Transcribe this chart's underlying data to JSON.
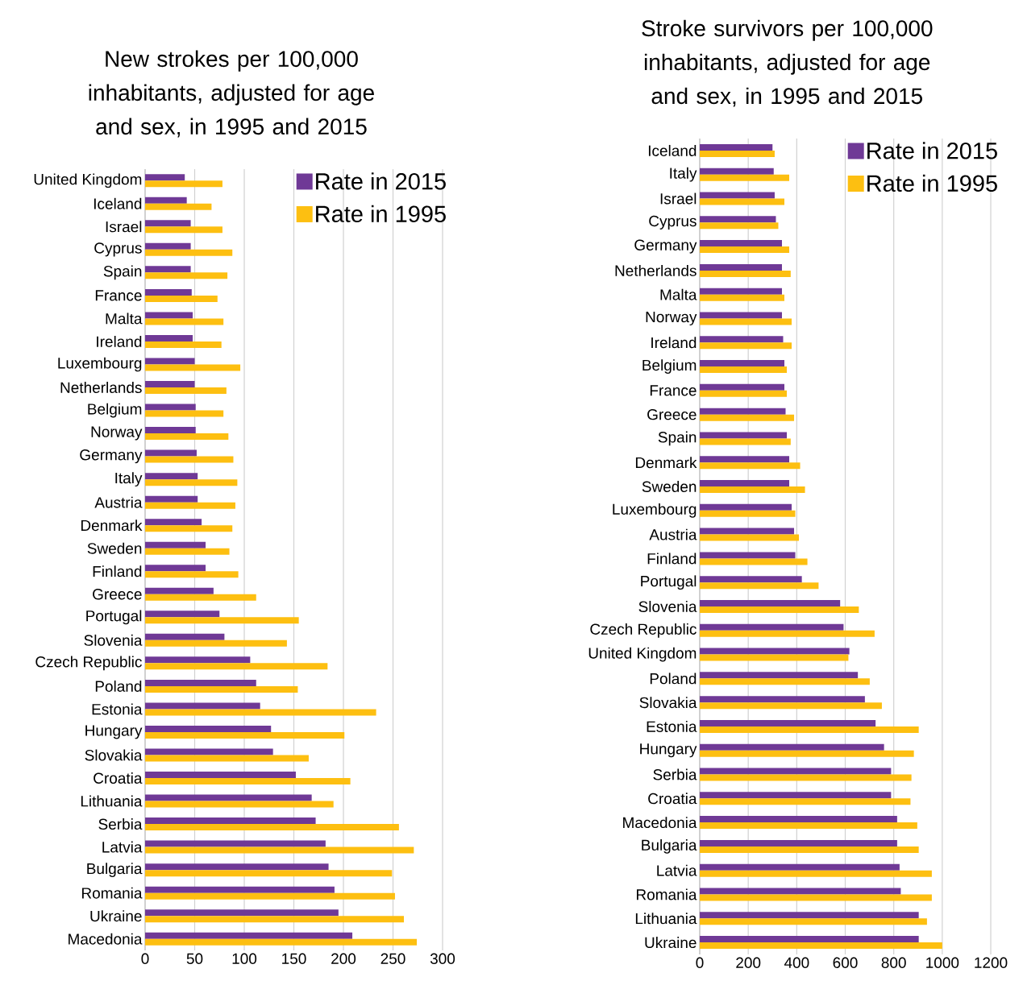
{
  "chart_data": [
    {
      "type": "bar",
      "orientation": "horizontal",
      "title": "New strokes per 100,000 inhabitants, adjusted for age and sex, in 1995 and 2015",
      "categories": [
        "United Kingdom",
        "Iceland",
        "Israel",
        "Cyprus",
        "Spain",
        "France",
        "Malta",
        "Ireland",
        "Luxembourg",
        "Netherlands",
        "Belgium",
        "Norway",
        "Germany",
        "Italy",
        "Austria",
        "Denmark",
        "Sweden",
        "Finland",
        "Greece",
        "Portugal",
        "Slovenia",
        "Czech Republic",
        "Poland",
        "Estonia",
        "Hungary",
        "Slovakia",
        "Croatia",
        "Lithuania",
        "Serbia",
        "Latvia",
        "Bulgaria",
        "Romania",
        "Ukraine",
        "Macedonia"
      ],
      "series": [
        {
          "name": "Rate in 2015",
          "color": "#6f3996",
          "values": [
            40,
            42,
            46,
            46,
            46,
            47,
            48,
            48,
            50,
            50,
            51,
            51,
            52,
            53,
            53,
            57,
            61,
            61,
            69,
            75,
            80,
            106,
            112,
            116,
            127,
            129,
            152,
            168,
            172,
            182,
            185,
            191,
            195,
            209
          ]
        },
        {
          "name": "Rate in 1995",
          "color": "#fdbf11",
          "values": [
            78,
            67,
            78,
            88,
            83,
            73,
            79,
            77,
            96,
            82,
            79,
            84,
            89,
            93,
            91,
            88,
            85,
            94,
            112,
            155,
            143,
            184,
            154,
            233,
            201,
            165,
            207,
            190,
            256,
            271,
            249,
            252,
            261,
            274
          ]
        }
      ],
      "xlim": [
        0,
        300
      ],
      "xticks": [
        0,
        50,
        100,
        150,
        200,
        250,
        300
      ],
      "grid": "x",
      "legend": "top right"
    },
    {
      "type": "bar",
      "orientation": "horizontal",
      "title": "Stroke survivors per 100,000 inhabitants, adjusted for age and sex, in 1995 and 2015",
      "categories": [
        "Iceland",
        "Italy",
        "Israel",
        "Cyprus",
        "Germany",
        "Netherlands",
        "Malta",
        "Norway",
        "Ireland",
        "Belgium",
        "France",
        "Greece",
        "Spain",
        "Denmark",
        "Sweden",
        "Luxembourg",
        "Austria",
        "Finland",
        "Portugal",
        "Slovenia",
        "Czech Republic",
        "United Kingdom",
        "Poland",
        "Slovakia",
        "Estonia",
        "Hungary",
        "Serbia",
        "Croatia",
        "Macedonia",
        "Bulgaria",
        "Latvia",
        "Romania",
        "Lithuania",
        "Ukraine"
      ],
      "series": [
        {
          "name": "Rate in 2015",
          "color": "#6f3996",
          "values": [
            300,
            305,
            309,
            314,
            339,
            339,
            339,
            339,
            344,
            349,
            349,
            354,
            359,
            369,
            369,
            379,
            389,
            394,
            421,
            579,
            593,
            617,
            652,
            681,
            725,
            760,
            789,
            789,
            814,
            814,
            824,
            829,
            903,
            903
          ]
        },
        {
          "name": "Rate in 1995",
          "color": "#fdbf11",
          "values": [
            309,
            369,
            349,
            324,
            369,
            375,
            349,
            379,
            379,
            359,
            359,
            389,
            375,
            414,
            434,
            394,
            409,
            444,
            490,
            656,
            721,
            613,
            701,
            751,
            903,
            883,
            873,
            869,
            897,
            903,
            957,
            957,
            937,
            1000
          ]
        }
      ],
      "xlim": [
        0,
        1200
      ],
      "xticks": [
        0,
        200,
        400,
        600,
        800,
        1000,
        1200
      ],
      "grid": "x",
      "legend": "top right"
    }
  ]
}
